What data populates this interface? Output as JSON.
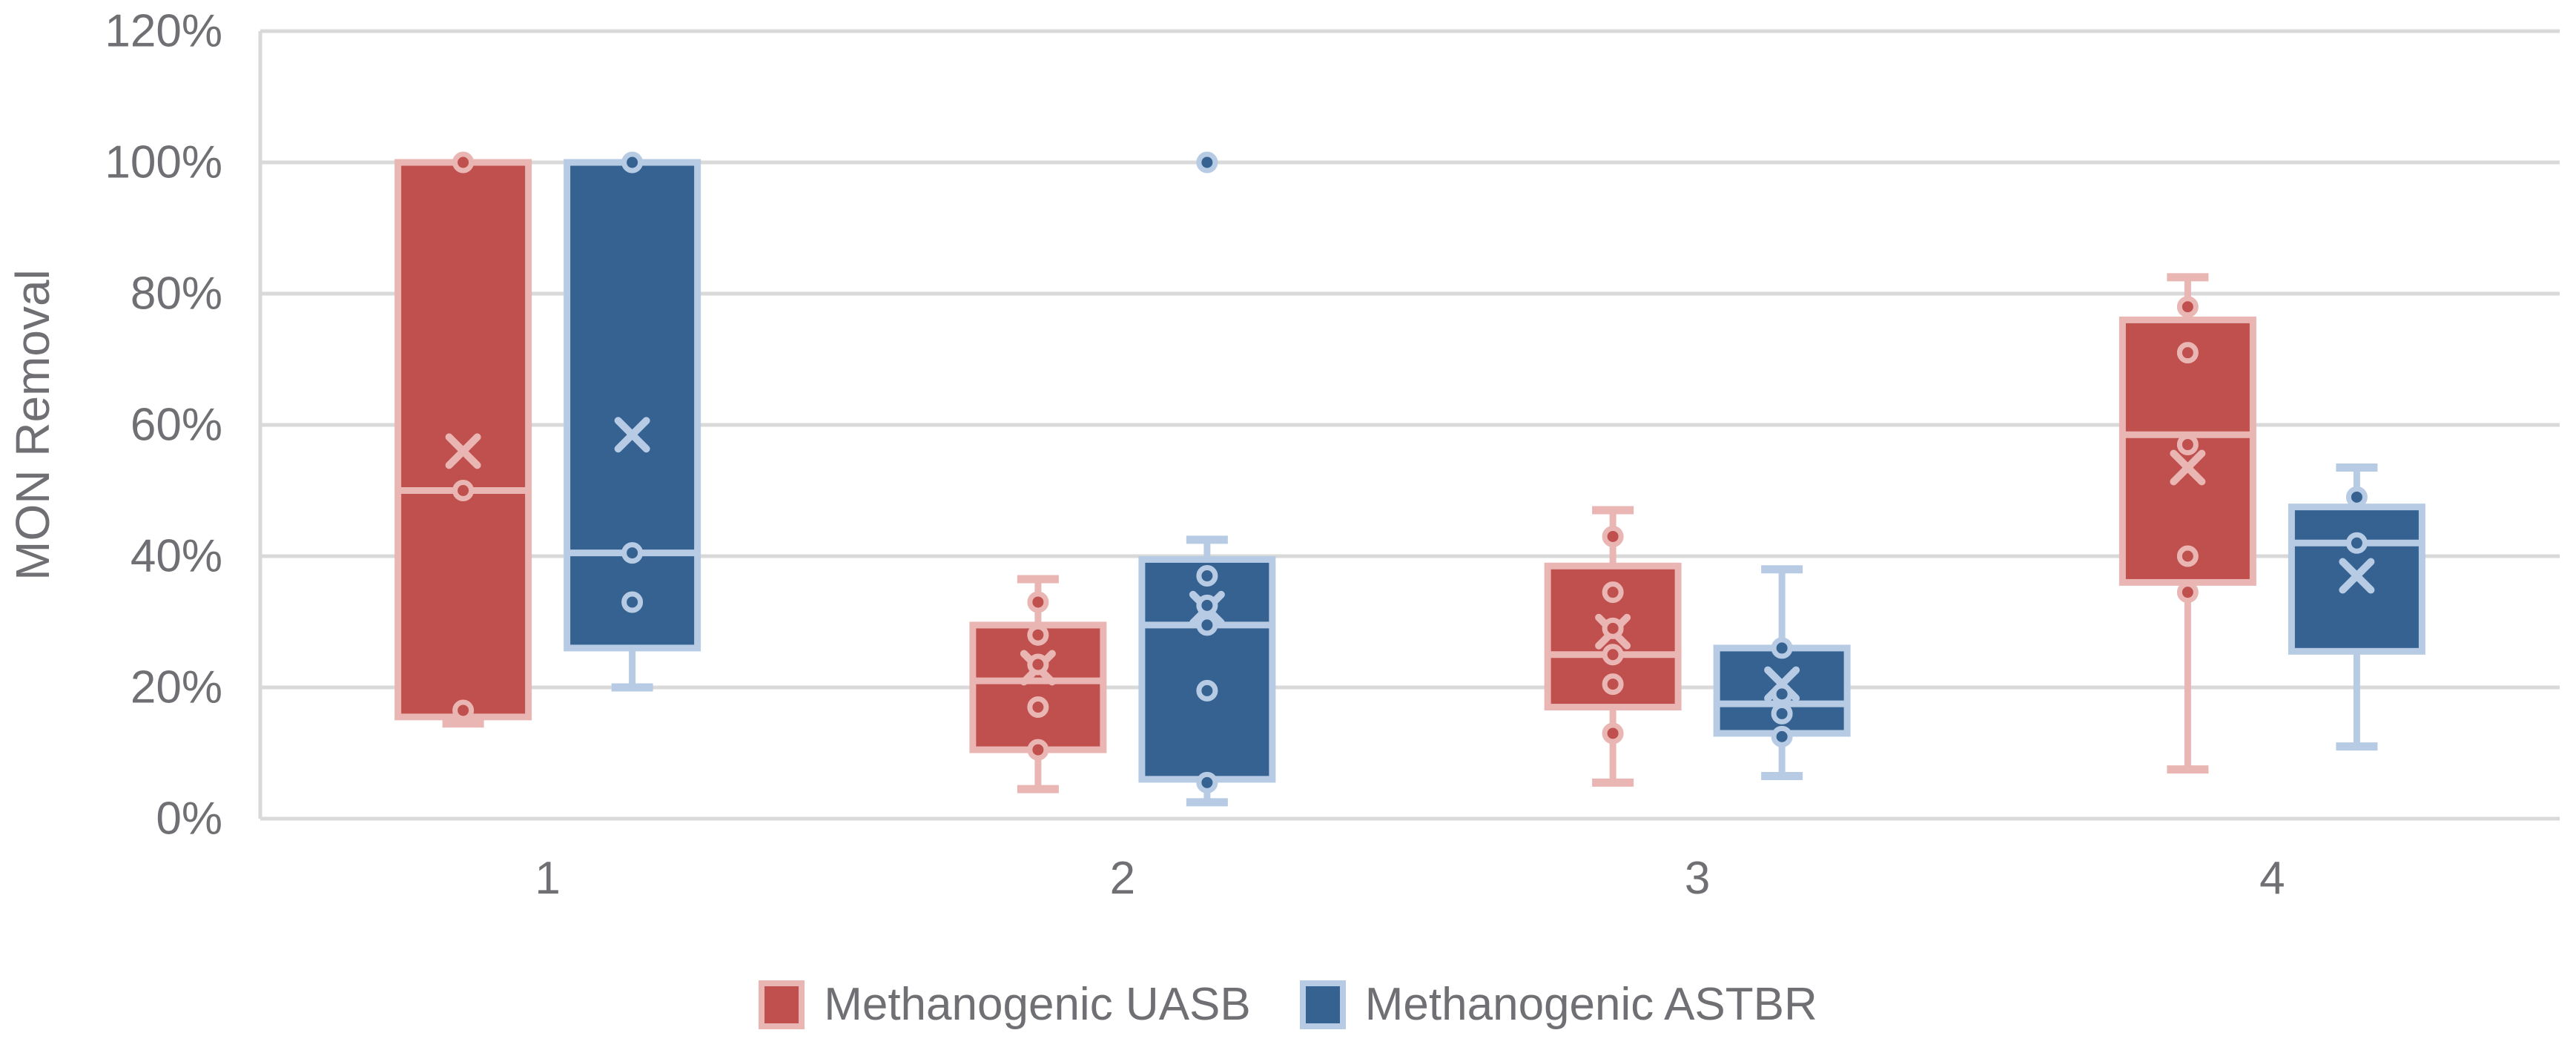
{
  "chart_data": {
    "type": "boxplot",
    "title": "",
    "xlabel": "",
    "ylabel": "MON Removal",
    "categories": [
      "1",
      "2",
      "3",
      "4"
    ],
    "y_axis": {
      "min": 0,
      "max": 120,
      "step": 20,
      "unit": "%",
      "tick_labels": [
        "0%",
        "20%",
        "40%",
        "60%",
        "80%",
        "100%",
        "120%"
      ]
    },
    "grid": true,
    "legend_position": "bottom",
    "colors": {
      "gridline": "#D9D9D9",
      "axis_text": "#707074",
      "background": "#FFFFFF",
      "uasb_fill": "#C0504D",
      "uasb_light": "#E9B6B4",
      "astbr_fill": "#356291",
      "astbr_light": "#B7CCE4"
    },
    "series": [
      {
        "name": "Methanogenic UASB",
        "key": "uasb",
        "fill": "#C0504D",
        "light": "#E9B6B4",
        "boxes": [
          {
            "category": "1",
            "min": 14.5,
            "q1": 15.5,
            "median": 50,
            "q3": 100,
            "max": 100,
            "mean": 56,
            "points": [
              100,
              50,
              16.5
            ]
          },
          {
            "category": "2",
            "min": 4.5,
            "q1": 10.5,
            "median": 21,
            "q3": 29.5,
            "max": 36.5,
            "mean": 23,
            "points": [
              33,
              28,
              23.5,
              17,
              10.5
            ]
          },
          {
            "category": "3",
            "min": 5.5,
            "q1": 17,
            "median": 25,
            "q3": 38.5,
            "max": 47,
            "mean": 28.5,
            "points": [
              43,
              34.5,
              29,
              25,
              20.5,
              13
            ]
          },
          {
            "category": "4",
            "min": 7.5,
            "q1": 36,
            "median": 58.5,
            "q3": 76,
            "max": 82.5,
            "mean": 53.5,
            "points": [
              78,
              71,
              57,
              40,
              34.5
            ]
          }
        ]
      },
      {
        "name": "Methanogenic ASTBR",
        "key": "astbr",
        "fill": "#356291",
        "light": "#B7CCE4",
        "boxes": [
          {
            "category": "1",
            "min": 20,
            "q1": 26,
            "median": 40.5,
            "q3": 100,
            "max": 100,
            "mean": 58.5,
            "points": [
              100,
              40.5,
              33
            ]
          },
          {
            "category": "2",
            "min": 2.5,
            "q1": 6,
            "median": 29.5,
            "q3": 39.5,
            "max": 42.5,
            "mean": 32,
            "points": [
              100,
              37,
              32.5,
              29.5,
              19.5,
              5.5
            ]
          },
          {
            "category": "3",
            "min": 6.5,
            "q1": 13,
            "median": 17.5,
            "q3": 26,
            "max": 38,
            "mean": 20.5,
            "points": [
              26,
              19,
              16,
              12.5
            ]
          },
          {
            "category": "4",
            "min": 11,
            "q1": 25.5,
            "median": 42,
            "q3": 47.5,
            "max": 53.5,
            "mean": 37,
            "points": [
              49,
              42
            ]
          }
        ]
      }
    ]
  }
}
